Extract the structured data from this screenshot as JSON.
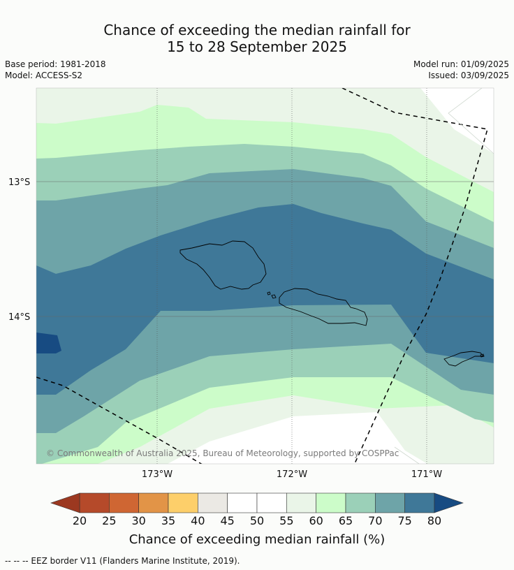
{
  "title_line1": "Chance of exceeding the median rainfall for",
  "title_line2": "15 to 28 September 2025",
  "meta": {
    "base_period": "Base period: 1981-2018",
    "model": "Model: ACCESS-S2",
    "model_run": "Model run: 01/09/2025",
    "issued": "Issued: 03/09/2025"
  },
  "map": {
    "lat_labels": [
      "13°S",
      "14°S"
    ],
    "lon_labels": [
      "173°W",
      "172°W",
      "171°W"
    ],
    "copyright": "© Commonwealth of Australia 2025, Bureau of Meteorology, supported by COSPPac"
  },
  "legend": {
    "ticks": [
      "20",
      "25",
      "30",
      "35",
      "40",
      "45",
      "50",
      "55",
      "60",
      "65",
      "70",
      "75",
      "80"
    ],
    "colors": [
      "#b54a2a",
      "#cf6633",
      "#e29447",
      "#fdcf6a",
      "#ebe9e4",
      "#ffffff",
      "#ffffff",
      "#eaf5e8",
      "#ccfcc9",
      "#9bd0b8",
      "#6ea4a8",
      "#3f7898"
    ],
    "below_color": "#9c3820",
    "above_color": "#174b82",
    "label": "Chance of exceeding median rainfall (%)"
  },
  "footer": "--  --  -- EEZ border V11 (Flanders Marine Institute, 2019)."
}
